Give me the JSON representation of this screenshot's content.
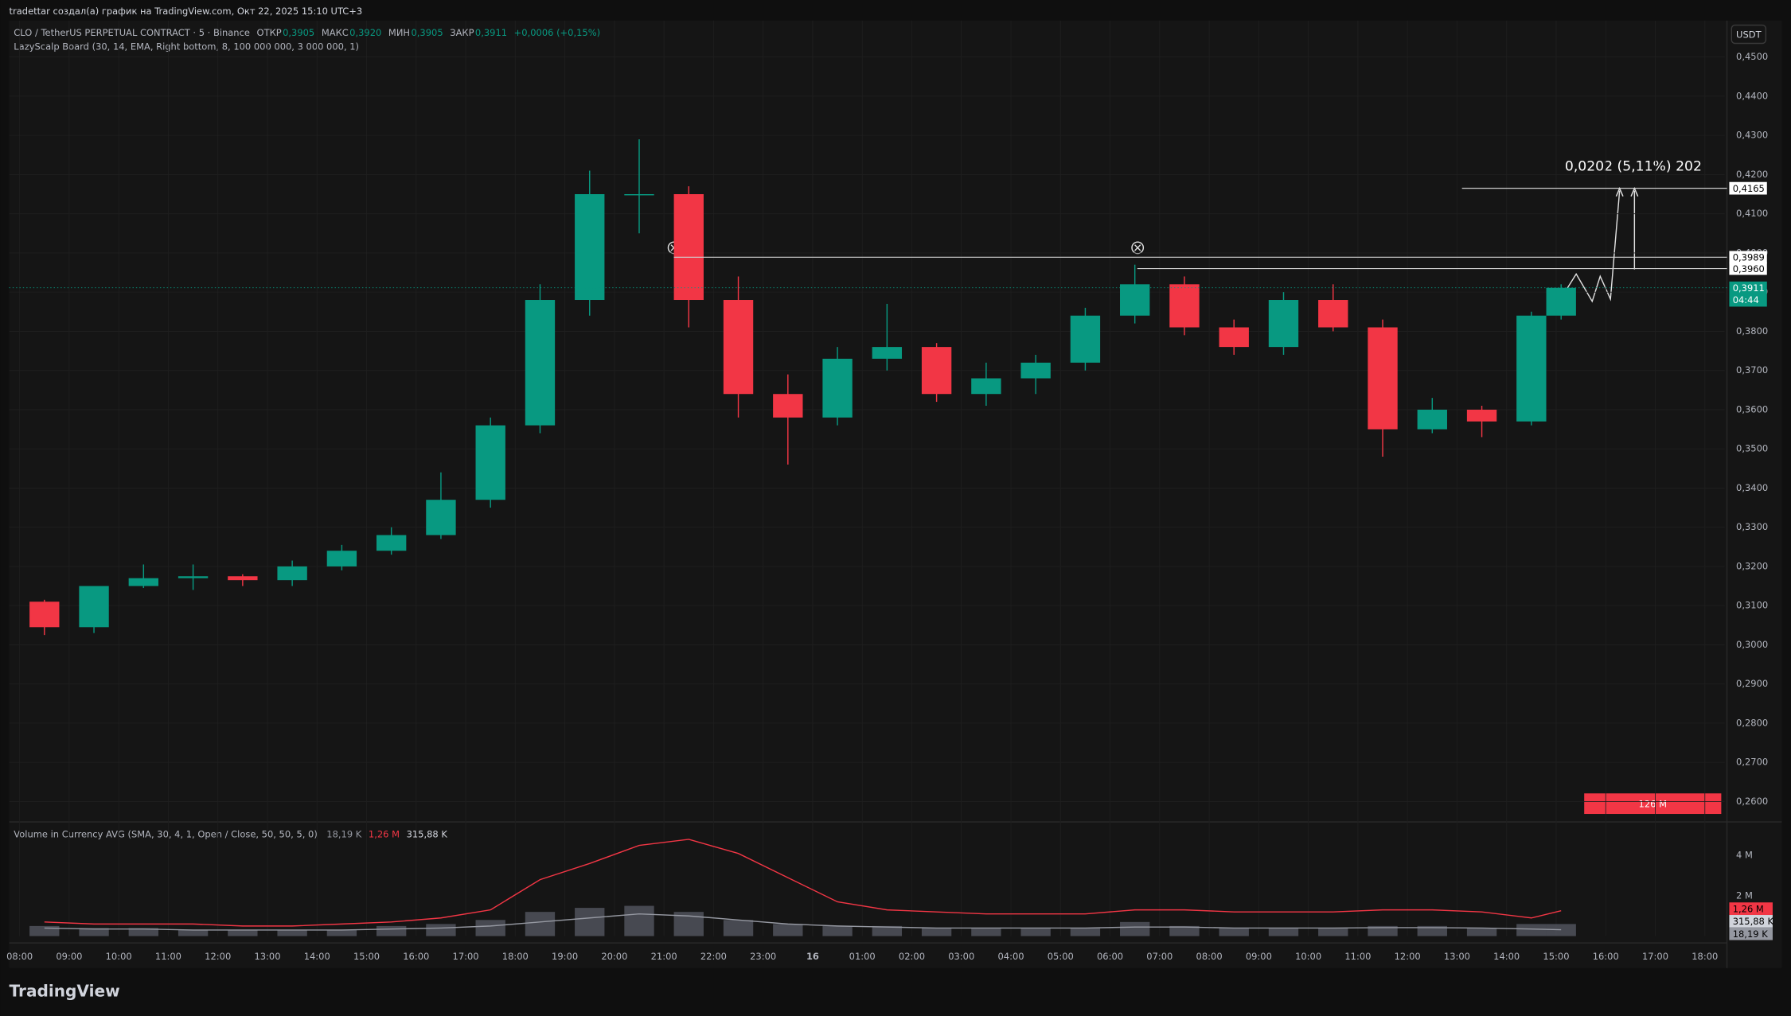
{
  "chart_data": {
    "type": "candlestick",
    "header": "tradettar создал(а) график на TradingView.com, Окт 22, 2025 15:10 UTC+3",
    "title": "CLO / TetherUS PERPETUAL CONTRACT · 5 · Binance",
    "ohlc_legend": [
      {
        "name": "ОТКР",
        "value": 0.3905,
        "value_label": "0,3905"
      },
      {
        "name": "МАКС",
        "value": 0.392,
        "value_label": "0,3920"
      },
      {
        "name": "МИН",
        "value": 0.3905,
        "value_label": "0,3905"
      },
      {
        "name": "ЗАКР",
        "value": 0.3911,
        "value_label": "0,3911"
      }
    ],
    "change": "+0,0006 (+0,15%)",
    "indicator": "LazyScalp Board (30, 14, EMA, Right bottom, 8, 100 000 000, 3 000 000, 1)",
    "currency": "USDT",
    "up_color": "#089981",
    "down_color": "#f23645",
    "x": [
      0.5,
      1.5,
      2.5,
      3.5,
      4.5,
      5.5,
      6.5,
      7.5,
      8.5,
      9.5,
      10.5,
      11.5,
      12.5,
      13.5,
      14.5,
      15.5,
      16.5,
      17.5,
      18.5,
      19.5,
      20.5,
      21.5,
      22.5,
      23.5,
      24.5,
      25.5,
      26.5,
      27.5,
      28.5,
      29.5,
      30.5,
      31.1
    ],
    "open": [
      0.311,
      0.3045,
      0.315,
      0.317,
      0.3175,
      0.3165,
      0.32,
      0.324,
      0.328,
      0.337,
      0.356,
      0.388,
      0.415,
      0.415,
      0.388,
      0.364,
      0.358,
      0.373,
      0.376,
      0.364,
      0.368,
      0.372,
      0.384,
      0.392,
      0.381,
      0.376,
      0.388,
      0.381,
      0.355,
      0.36,
      0.357,
      0.384
    ],
    "high": [
      0.3115,
      0.3135,
      0.3205,
      0.3205,
      0.318,
      0.3215,
      0.3255,
      0.33,
      0.344,
      0.358,
      0.392,
      0.421,
      0.429,
      0.417,
      0.394,
      0.369,
      0.376,
      0.387,
      0.377,
      0.372,
      0.374,
      0.386,
      0.397,
      0.394,
      0.383,
      0.39,
      0.392,
      0.383,
      0.363,
      0.361,
      0.385,
      0.392
    ],
    "low": [
      0.3025,
      0.303,
      0.3145,
      0.314,
      0.315,
      0.315,
      0.319,
      0.323,
      0.327,
      0.335,
      0.354,
      0.384,
      0.405,
      0.381,
      0.358,
      0.346,
      0.356,
      0.37,
      0.362,
      0.361,
      0.364,
      0.37,
      0.382,
      0.379,
      0.374,
      0.374,
      0.38,
      0.348,
      0.354,
      0.353,
      0.356,
      0.383
    ],
    "close": [
      0.3045,
      0.315,
      0.317,
      0.3175,
      0.3165,
      0.32,
      0.324,
      0.328,
      0.337,
      0.356,
      0.388,
      0.415,
      0.415,
      0.388,
      0.364,
      0.358,
      0.373,
      0.376,
      0.364,
      0.368,
      0.372,
      0.384,
      0.392,
      0.381,
      0.376,
      0.388,
      0.381,
      0.355,
      0.36,
      0.357,
      0.384,
      0.3911
    ],
    "xlim": [
      -0.21,
      34.4
    ],
    "xticks": [
      {
        "value": 0,
        "label": "08:00"
      },
      {
        "value": 1,
        "label": "09:00"
      },
      {
        "value": 2,
        "label": "10:00"
      },
      {
        "value": 3,
        "label": "11:00"
      },
      {
        "value": 4,
        "label": "12:00"
      },
      {
        "value": 5,
        "label": "13:00"
      },
      {
        "value": 6,
        "label": "14:00"
      },
      {
        "value": 7,
        "label": "15:00"
      },
      {
        "value": 8,
        "label": "16:00"
      },
      {
        "value": 9,
        "label": "17:00"
      },
      {
        "value": 10,
        "label": "18:00"
      },
      {
        "value": 11,
        "label": "19:00"
      },
      {
        "value": 12,
        "label": "20:00"
      },
      {
        "value": 13,
        "label": "21:00"
      },
      {
        "value": 14,
        "label": "22:00"
      },
      {
        "value": 15,
        "label": "23:00"
      },
      16,
      {
        "value": 17,
        "label": "01:00"
      },
      {
        "value": 18,
        "label": "02:00"
      },
      {
        "value": 19,
        "label": "03:00"
      },
      {
        "value": 20,
        "label": "04:00"
      },
      {
        "value": 21,
        "label": "05:00"
      },
      {
        "value": 22,
        "label": "06:00"
      },
      {
        "value": 23,
        "label": "07:00"
      },
      {
        "value": 24,
        "label": "08:00"
      },
      {
        "value": 25,
        "label": "09:00"
      },
      {
        "value": 26,
        "label": "10:00"
      },
      {
        "value": 27,
        "label": "11:00"
      },
      {
        "value": 28,
        "label": "12:00"
      },
      {
        "value": 29,
        "label": "13:00"
      },
      {
        "value": 30,
        "label": "14:00"
      },
      {
        "value": 31,
        "label": "15:00"
      },
      {
        "value": 32,
        "label": "16:00"
      },
      {
        "value": 33,
        "label": "17:00"
      },
      {
        "value": 34,
        "label": "18:00"
      }
    ],
    "ylim": [
      0.2548,
      0.4593
    ],
    "yticks": [
      {
        "value": 0.45,
        "label": "0,4500"
      },
      {
        "value": 0.44,
        "label": "0,4400"
      },
      {
        "value": 0.43,
        "label": "0,4300"
      },
      {
        "value": 0.42,
        "label": "0,4200"
      },
      {
        "value": 0.41,
        "label": "0,4100"
      },
      {
        "value": 0.4,
        "label": "0,4000"
      },
      {
        "value": 0.39,
        "label": "0,3900"
      },
      {
        "value": 0.38,
        "label": "0,3800"
      },
      {
        "value": 0.37,
        "label": "0,3700"
      },
      {
        "value": 0.36,
        "label": "0,3600"
      },
      {
        "value": 0.35,
        "label": "0,3500"
      },
      {
        "value": 0.34,
        "label": "0,3400"
      },
      {
        "value": 0.33,
        "label": "0,3300"
      },
      {
        "value": 0.32,
        "label": "0,3200"
      },
      {
        "value": 0.31,
        "label": "0,3100"
      },
      {
        "value": 0.3,
        "label": "0,3000"
      },
      {
        "value": 0.29,
        "label": "0,2900"
      },
      {
        "value": 0.28,
        "label": "0,2800"
      },
      {
        "value": 0.27,
        "label": "0,2700"
      },
      {
        "value": 0.26,
        "label": "0,2600"
      }
    ],
    "levels": [
      {
        "value": 0.4165,
        "label": "0,4165",
        "from": 29.1
      },
      {
        "value": 0.3989,
        "label": "0,3989",
        "from": 13.2
      },
      {
        "value": 0.396,
        "label": "0,3960",
        "from": 22.55
      }
    ],
    "current_price": {
      "value": 0.3911,
      "label": "0,3911",
      "countdown": "04:44"
    },
    "measure_label": "0,0202 (5,11%) 202",
    "board_label": "126 M",
    "volume": {
      "title": "Volume in Currency AVG (SMA, 30, 4, 1, Open / Close, 50, 50, 5, 0)",
      "legend": [
        {
          "label": "18,19 K",
          "color": "#9598a1"
        },
        {
          "label": "1,26 M",
          "color": "#f23645"
        },
        {
          "label": "315,88 K",
          "color": "#d1d4dc"
        }
      ],
      "ylim": [
        0,
        5.55
      ],
      "yticks": [
        {
          "value": 2,
          "label": "2 M"
        },
        {
          "value": 4,
          "label": "4 M"
        }
      ],
      "values": [
        0.5,
        0.4,
        0.4,
        0.3,
        0.3,
        0.3,
        0.3,
        0.5,
        0.6,
        0.8,
        1.2,
        1.4,
        1.5,
        1.2,
        0.8,
        0.6,
        0.5,
        0.5,
        0.4,
        0.4,
        0.4,
        0.4,
        0.7,
        0.5,
        0.4,
        0.4,
        0.4,
        0.5,
        0.5,
        0.4,
        0.6,
        0.6
      ],
      "avg": [
        0.7,
        0.6,
        0.6,
        0.6,
        0.5,
        0.5,
        0.6,
        0.7,
        0.9,
        1.3,
        2.8,
        3.6,
        4.5,
        4.8,
        4.1,
        2.9,
        1.7,
        1.3,
        1.2,
        1.1,
        1.1,
        1.1,
        1.3,
        1.3,
        1.2,
        1.2,
        1.2,
        1.3,
        1.3,
        1.2,
        0.9,
        1.26
      ],
      "avg_color": "#f23645",
      "avg2": [
        0.4,
        0.35,
        0.35,
        0.3,
        0.3,
        0.3,
        0.3,
        0.35,
        0.4,
        0.5,
        0.7,
        0.9,
        1.1,
        1.0,
        0.8,
        0.6,
        0.5,
        0.45,
        0.4,
        0.4,
        0.4,
        0.4,
        0.45,
        0.45,
        0.4,
        0.4,
        0.4,
        0.42,
        0.42,
        0.4,
        0.35,
        0.3159
      ],
      "avg2_color": "#9598a1",
      "bar_color": "#5d606b",
      "axis_labels": [
        {
          "value": 1.26,
          "label": "1,26 M",
          "color": "#f23645"
        },
        {
          "value": 0.3159,
          "label": "315,88 K",
          "color": "#d1d4dc"
        },
        {
          "value": 0.0182,
          "label": "18,19 K",
          "color": "#9598a1"
        }
      ]
    },
    "brand": "TradingView"
  }
}
